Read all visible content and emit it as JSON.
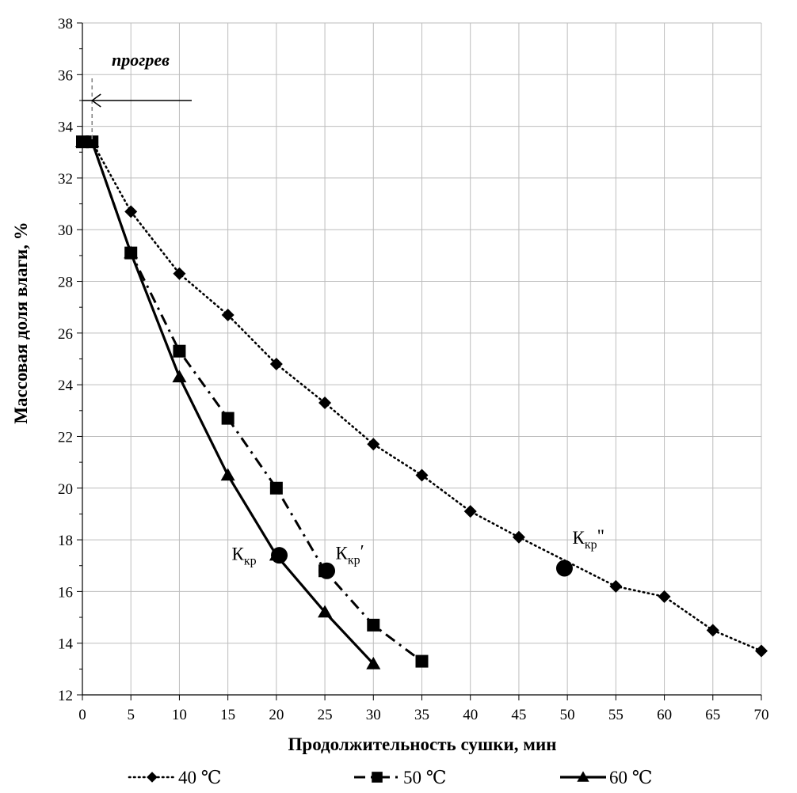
{
  "chart_data": {
    "type": "line",
    "xlabel": "Продолжительность  сушки, мин",
    "ylabel": "Массовая доля влаги, %",
    "xlim": [
      0,
      70
    ],
    "ylim": [
      12,
      38
    ],
    "x_ticks": [
      "0",
      "5",
      "10",
      "15",
      "20",
      "25",
      "30",
      "35",
      "40",
      "45",
      "50",
      "55",
      "60",
      "65",
      "70"
    ],
    "y_ticks": [
      "12",
      "14",
      "16",
      "18",
      "20",
      "22",
      "24",
      "26",
      "28",
      "30",
      "32",
      "34",
      "36",
      "38"
    ],
    "grid": true,
    "legend_position": "bottom",
    "series": [
      {
        "name": "40 ℃",
        "line_style": "dotted",
        "marker": "diamond",
        "x": [
          0,
          1,
          5,
          10,
          15,
          20,
          25,
          30,
          35,
          40,
          45,
          55,
          60,
          65,
          70
        ],
        "y": [
          33.4,
          33.4,
          30.7,
          28.3,
          26.7,
          24.8,
          23.3,
          21.7,
          20.5,
          19.1,
          18.1,
          16.2,
          15.8,
          14.5,
          13.7
        ]
      },
      {
        "name": "50 ℃",
        "line_style": "dash-dot",
        "marker": "square",
        "x": [
          0,
          1,
          5,
          10,
          15,
          20,
          25,
          30,
          35
        ],
        "y": [
          33.4,
          33.4,
          29.1,
          25.3,
          22.7,
          20.0,
          16.8,
          14.7,
          13.3
        ]
      },
      {
        "name": "60 ℃",
        "line_style": "solid",
        "marker": "triangle",
        "x": [
          0,
          1,
          5,
          10,
          15,
          20,
          25,
          30
        ],
        "y": [
          33.4,
          33.4,
          29.1,
          24.3,
          20.5,
          17.4,
          15.2,
          13.2
        ]
      }
    ],
    "critical_points": [
      {
        "label_main": "К",
        "label_sub": "кр",
        "label_suffix": "",
        "x": 20.3,
        "y": 17.4
      },
      {
        "label_main": "К",
        "label_sub": "кр",
        "label_suffix": "′",
        "x": 25.2,
        "y": 16.8
      },
      {
        "label_main": "К",
        "label_sub": "кр",
        "label_suffix": "\"",
        "x": 49.7,
        "y": 16.9
      }
    ],
    "heating_annotation": {
      "text": "прогрев",
      "x": 1
    }
  }
}
